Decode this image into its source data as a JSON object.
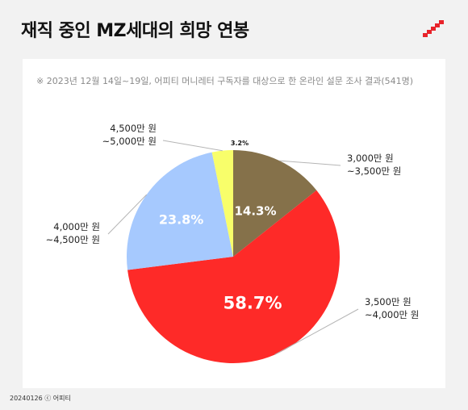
{
  "header": {
    "title": "재직 중인 MZ세대의 희망 연봉"
  },
  "note": "※ 2023년 12월 14일~19일, 어피티 머니레터 구독자를 대상으로 한 온라인 설문 조사 결과(541명)",
  "footer": "20240126 ⓒ 어피티",
  "colors": {
    "background": "#f2f2f2",
    "card": "#ffffff",
    "accent": "#e8232a"
  },
  "icons": {
    "logo": "diagonal-stairs-logo"
  },
  "chart_data": {
    "type": "pie",
    "start": "top",
    "direction": "clockwise",
    "slices": [
      {
        "label_line1": "3,000만 원",
        "label_line2": "~3,500만 원",
        "value": 14.3,
        "display": "14.3%",
        "color": "#85714a"
      },
      {
        "label_line1": "3,500만 원",
        "label_line2": "~4,000만 원",
        "value": 58.7,
        "display": "58.7%",
        "color": "#fe2a28"
      },
      {
        "label_line1": "4,000만 원",
        "label_line2": "~4,500만 원",
        "value": 23.8,
        "display": "23.8%",
        "color": "#a6c9fe"
      },
      {
        "label_line1": "4,500만 원",
        "label_line2": "~5,000만 원",
        "value": 3.2,
        "display": "3.2%",
        "color": "#f8fe6a"
      }
    ]
  }
}
